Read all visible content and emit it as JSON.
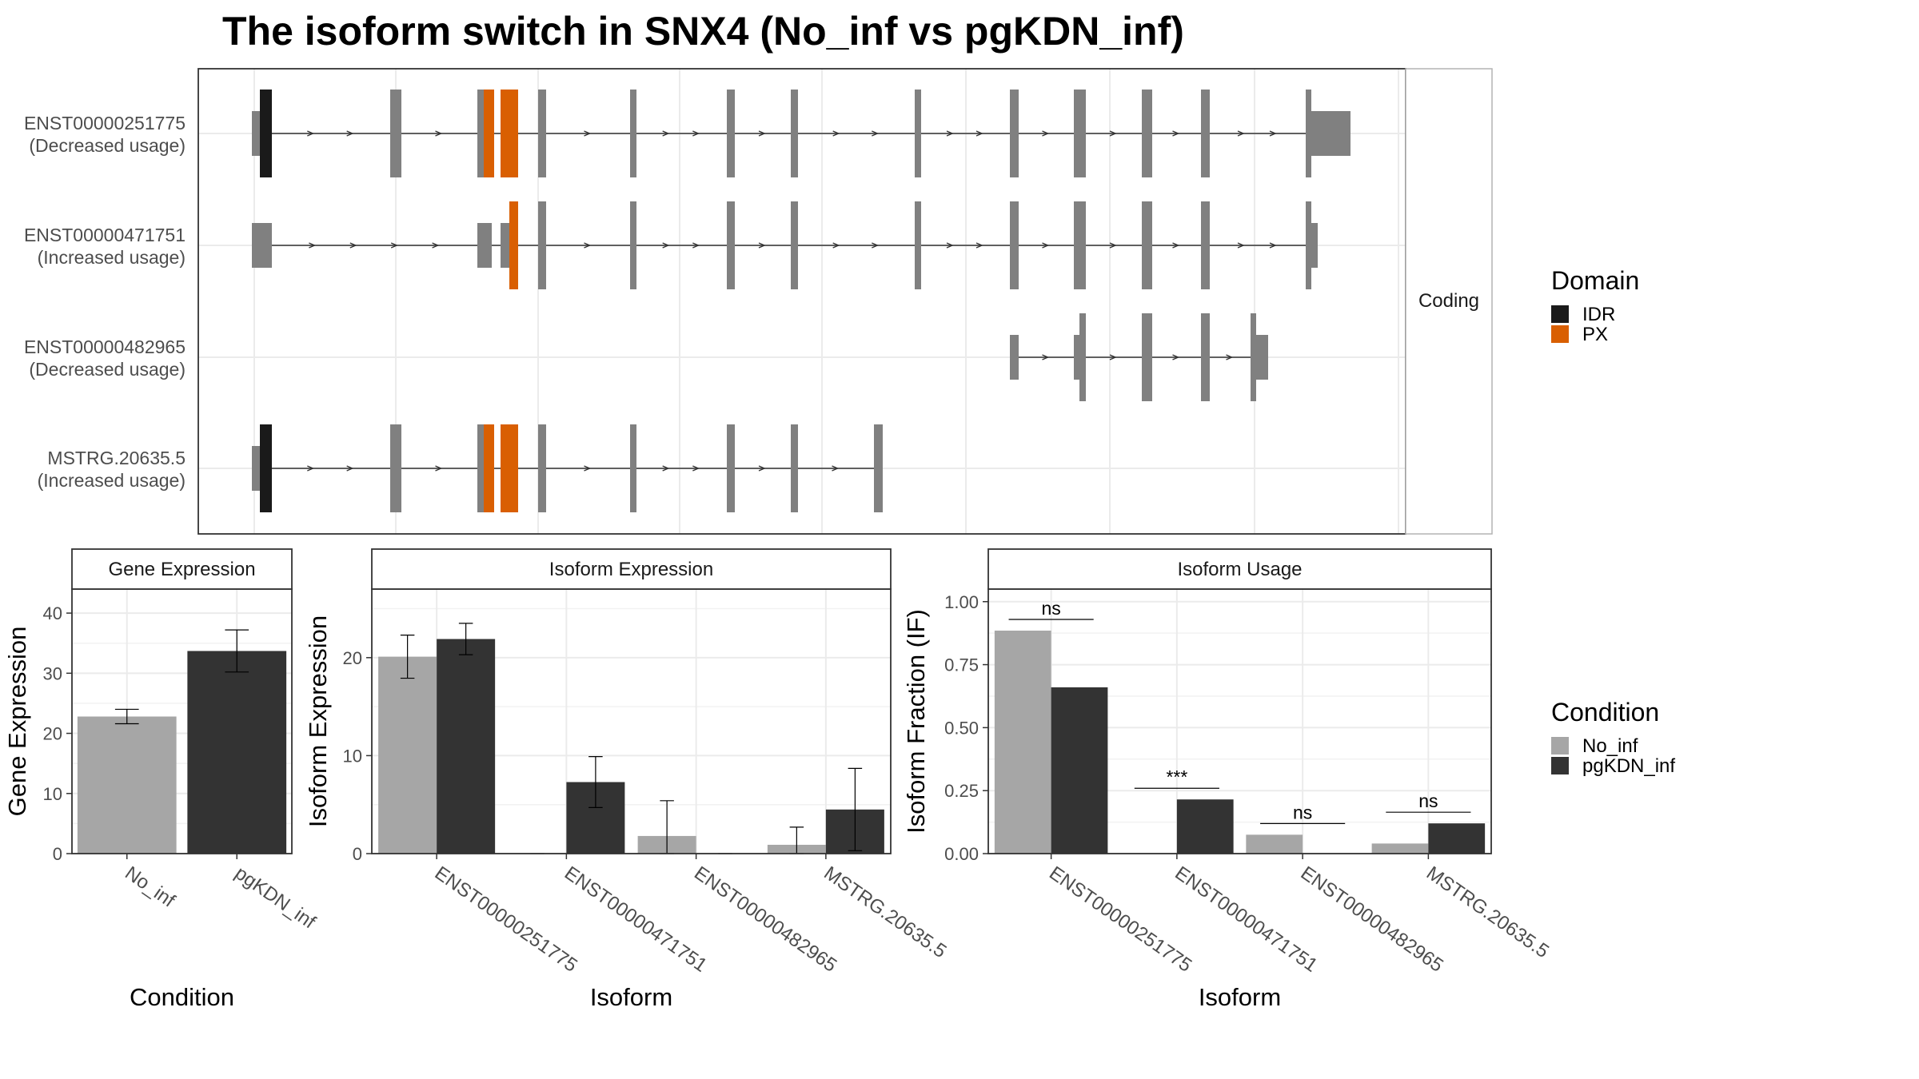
{
  "title": "The isoform switch in SNX4 (No_inf vs pgKDN_inf)",
  "structure": {
    "strip_label": "Coding",
    "isoforms": [
      {
        "name": "ENST00000251775",
        "usage": "(Decreased usage)"
      },
      {
        "name": "ENST00000471751",
        "usage": "(Increased usage)"
      },
      {
        "name": "ENST00000482965",
        "usage": "(Decreased usage)"
      },
      {
        "name": "MSTRG.20635.5",
        "usage": "(Increased usage)"
      }
    ],
    "domain_legend": {
      "title": "Domain",
      "items": [
        {
          "label": "IDR",
          "color": "#1a1a1a"
        },
        {
          "label": "PX",
          "color": "#d95f02"
        }
      ]
    },
    "exon_color": "#808080"
  },
  "condition_legend": {
    "title": "Condition",
    "items": [
      {
        "label": "No_inf",
        "color": "#a6a6a6"
      },
      {
        "label": "pgKDN_inf",
        "color": "#333333"
      }
    ]
  },
  "chart_data": [
    {
      "type": "bar",
      "title": "Gene Expression",
      "xlabel": "Condition",
      "ylabel": "Gene Expression",
      "ylim": [
        0,
        44
      ],
      "yticks": [
        "0",
        "10",
        "20",
        "30",
        "40"
      ],
      "categories": [
        "No_inf",
        "pgKDN_inf"
      ],
      "values": [
        22.8,
        33.7
      ],
      "errors": [
        [
          21.6,
          24.0
        ],
        [
          30.2,
          37.2
        ]
      ]
    },
    {
      "type": "bar",
      "title": "Isoform Expression",
      "xlabel": "Isoform",
      "ylabel": "Isoform Expression",
      "ylim": [
        0,
        27
      ],
      "yticks": [
        "0",
        "10",
        "20"
      ],
      "categories": [
        "ENST00000251775",
        "ENST00000471751",
        "ENST00000482965",
        "MSTRG.20635.5"
      ],
      "series": [
        {
          "name": "No_inf",
          "values": [
            20.1,
            0.0,
            1.8,
            0.9
          ],
          "errors": [
            [
              17.9,
              22.3
            ],
            [
              0,
              0
            ],
            [
              0.0,
              5.4
            ],
            [
              0.0,
              2.7
            ]
          ]
        },
        {
          "name": "pgKDN_inf",
          "values": [
            21.9,
            7.3,
            0.0,
            4.5
          ],
          "errors": [
            [
              20.3,
              23.5
            ],
            [
              4.7,
              9.9
            ],
            [
              0,
              0
            ],
            [
              0.3,
              8.7
            ]
          ]
        }
      ]
    },
    {
      "type": "bar",
      "title": "Isoform Usage",
      "xlabel": "Isoform",
      "ylabel": "Isoform Fraction (IF)",
      "ylim": [
        0,
        1.05
      ],
      "yticks": [
        "0.00",
        "0.25",
        "0.50",
        "0.75",
        "1.00"
      ],
      "categories": [
        "ENST00000251775",
        "ENST00000471751",
        "ENST00000482965",
        "MSTRG.20635.5"
      ],
      "series": [
        {
          "name": "No_inf",
          "values": [
            0.885,
            0.0,
            0.075,
            0.04
          ]
        },
        {
          "name": "pgKDN_inf",
          "values": [
            0.66,
            0.215,
            0.0,
            0.12
          ]
        }
      ],
      "significance": [
        "ns",
        "***",
        "ns",
        "ns"
      ]
    }
  ]
}
